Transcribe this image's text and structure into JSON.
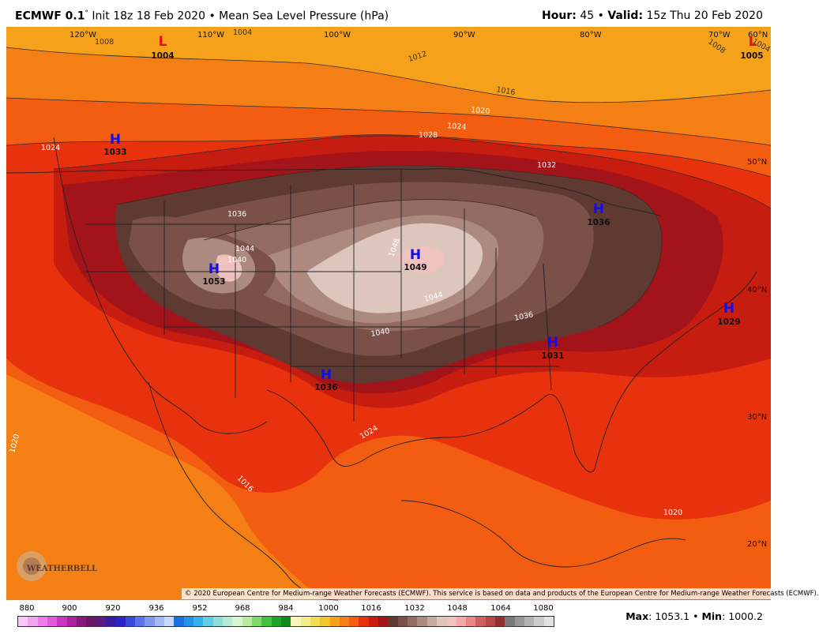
{
  "header": {
    "model": "ECMWF 0.1",
    "degree": "°",
    "init": "Init 18z 18 Feb 2020",
    "separator": "•",
    "field": "Mean Sea Level Pressure (hPa)",
    "hour_label": "Hour:",
    "hour_value": "45",
    "valid_label": "Valid:",
    "valid_value": "15z Thu 20 Feb 2020"
  },
  "longitude_labels": [
    "120°W",
    "110°W",
    "100°W",
    "90°W",
    "80°W",
    "70°W",
    "60°N"
  ],
  "latitude_labels": [
    "50°N",
    "40°N",
    "30°N",
    "20°N"
  ],
  "pressure_centers": [
    {
      "type": "L",
      "value": "1004",
      "color": "#e01010"
    },
    {
      "type": "L",
      "value": "1005",
      "color": "#e01010"
    },
    {
      "type": "H",
      "value": "1033",
      "color": "#1010e8"
    },
    {
      "type": "H",
      "value": "1053",
      "color": "#1010e8"
    },
    {
      "type": "H",
      "value": "1049",
      "color": "#1010e8"
    },
    {
      "type": "H",
      "value": "1036",
      "color": "#1010e8"
    },
    {
      "type": "H",
      "value": "1036",
      "color": "#1010e8"
    },
    {
      "type": "H",
      "value": "1031",
      "color": "#1010e8"
    },
    {
      "type": "H",
      "value": "1029",
      "color": "#1010e8"
    }
  ],
  "isobar_labels": [
    "1008",
    "1004",
    "1012",
    "1016",
    "1020",
    "1024",
    "1028",
    "1032",
    "1036",
    "1040",
    "1044",
    "1048",
    "1024",
    "1016",
    "1020",
    "1020",
    "1024",
    "1036",
    "1040",
    "1044",
    "1004",
    "1008"
  ],
  "logo_text": "WEATHERBELL",
  "copyright": "© 2020 European Centre for Medium-range Weather Forecasts (ECMWF). This service is based on data and products of the European Centre for Medium-range Weather Forecasts (ECMWF).",
  "colorbar": {
    "tick_labels": [
      "880",
      "900",
      "920",
      "936",
      "952",
      "968",
      "984",
      "1000",
      "1016",
      "1032",
      "1048",
      "1064",
      "1080"
    ],
    "colors": [
      "#f9c6f6",
      "#f2a2ef",
      "#ea7de6",
      "#e05ad9",
      "#cc33c2",
      "#a8239d",
      "#861a7c",
      "#6a1768",
      "#5a1a80",
      "#3c1aa0",
      "#2d22c4",
      "#3a49d8",
      "#5a73e6",
      "#7f99ee",
      "#a4bbf5",
      "#c8d8fa",
      "#1d6fe0",
      "#2592e6",
      "#38b3ea",
      "#66cbe7",
      "#8fdcdc",
      "#b2ead6",
      "#d4f5d0",
      "#b5ec9b",
      "#7ddc69",
      "#45c23d",
      "#1fa524",
      "#10891f",
      "#f8f5b8",
      "#f6ec86",
      "#f5dc55",
      "#f7c42a",
      "#f5a11a",
      "#f47f15",
      "#f25d12",
      "#e8320e",
      "#c71d10",
      "#a3141a",
      "#5e3a33",
      "#7a5049",
      "#946b62",
      "#ad8a80",
      "#c6aaa0",
      "#dcc6bd",
      "#efc2c0",
      "#f4a8a8",
      "#e88585",
      "#cf6060",
      "#b54848",
      "#903232",
      "#7a7a7a",
      "#969696",
      "#b2b2b2",
      "#cccccc",
      "#e2e2e2"
    ]
  },
  "stats": {
    "max_label": "Max",
    "max_value": "1053.1",
    "sep": "•",
    "min_label": "Min",
    "min_value": "1000.2"
  }
}
